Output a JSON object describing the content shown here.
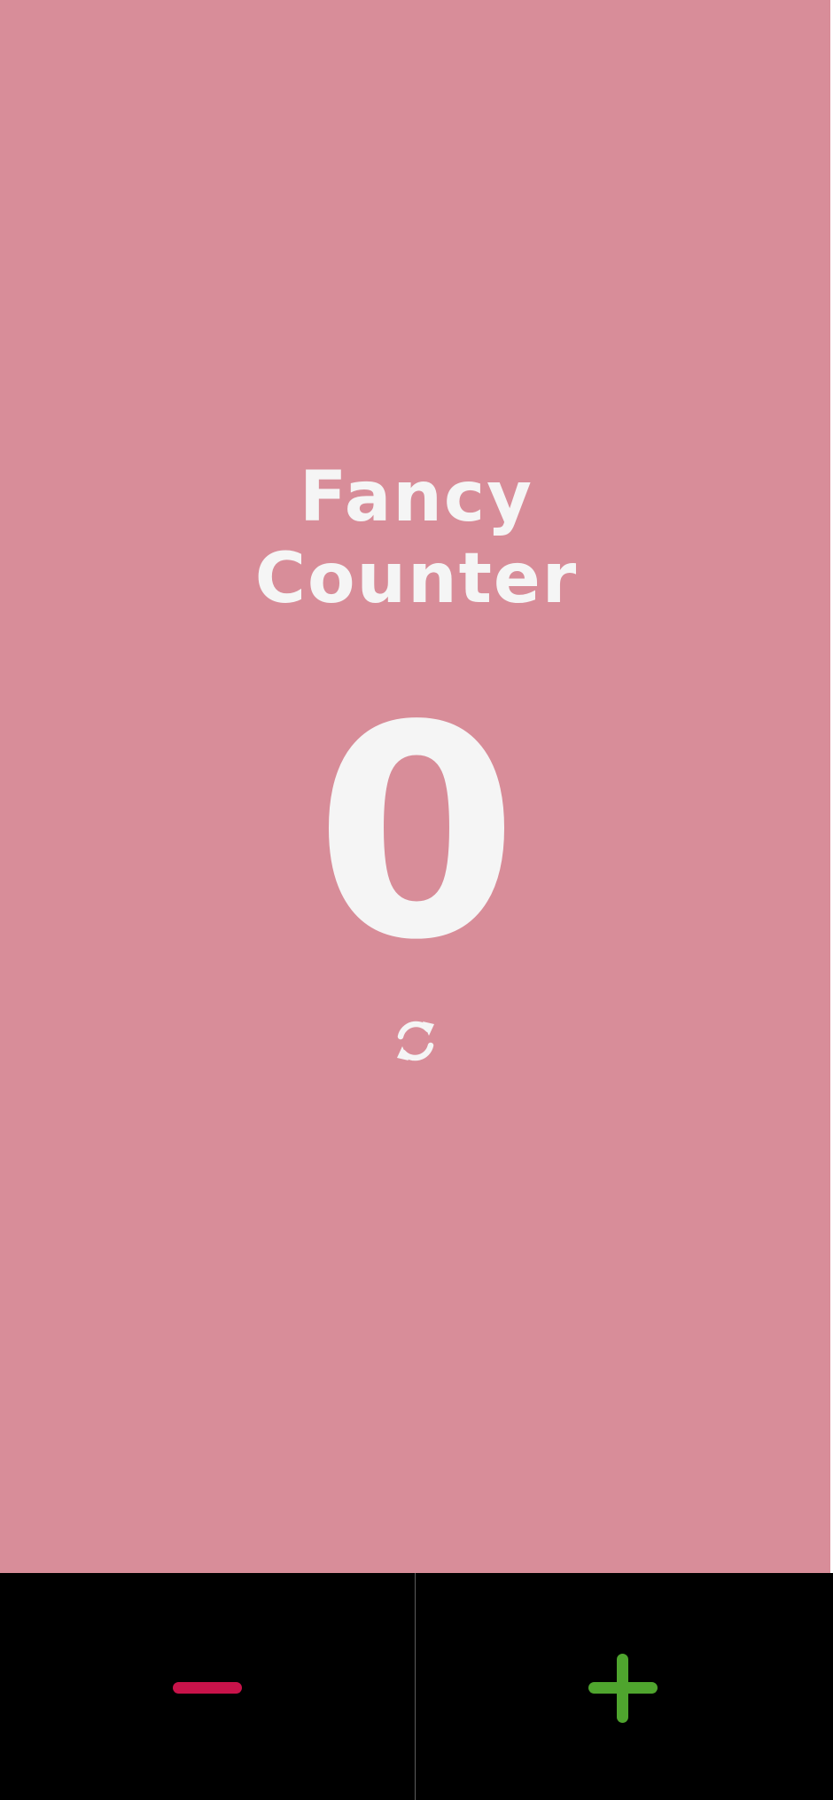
{
  "title": {
    "line1": "Fancy",
    "line2": "Counter"
  },
  "counter": {
    "value": "0"
  },
  "icons": {
    "reset": "refresh-icon",
    "decrement": "minus-icon",
    "increment": "plus-icon"
  },
  "colors": {
    "background": "#d88d99",
    "text": "#f5f5f5",
    "bottom_bar": "#000000",
    "decrement": "#c8134a",
    "increment": "#4fa52e"
  }
}
